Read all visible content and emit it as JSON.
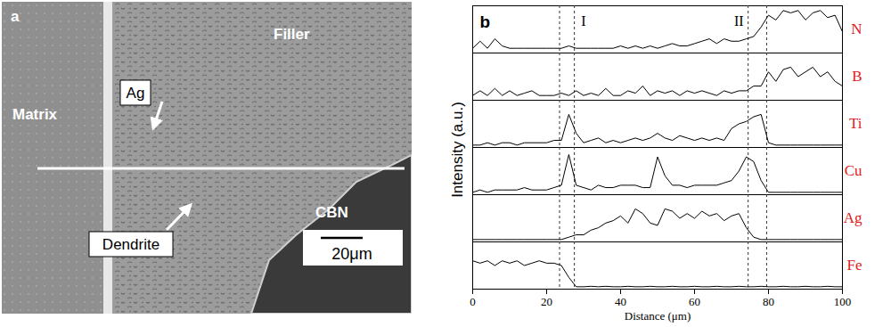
{
  "figure": {
    "panel_a": {
      "letter": "a",
      "type": "micrograph",
      "region_labels": [
        "Matrix",
        "Filler",
        "CBN"
      ],
      "arrow_labels": [
        "Ag",
        "Dendrite"
      ],
      "scale_bar": "20μm"
    }
  },
  "chart_data": {
    "type": "line",
    "letter": "b",
    "xlabel": "Distance (μm)",
    "ylabel": "Intensity (a.u.)",
    "xlim": [
      0,
      100
    ],
    "xticks": [
      0,
      20,
      40,
      60,
      80,
      100
    ],
    "ylim": [
      0,
      10
    ],
    "tick_labels": "x",
    "grid": false,
    "reference_lines": [
      23.5,
      27.5,
      74.5,
      79.5
    ],
    "annotations": [
      {
        "text": "I",
        "x": 30
      },
      {
        "text": "II",
        "x": 72
      }
    ],
    "x": [
      0,
      2,
      4,
      6,
      8,
      10,
      12,
      14,
      16,
      18,
      20,
      22,
      24,
      26,
      28,
      30,
      32,
      34,
      36,
      38,
      40,
      42,
      44,
      46,
      48,
      50,
      52,
      54,
      56,
      58,
      60,
      62,
      64,
      66,
      68,
      70,
      72,
      74,
      76,
      78,
      80,
      82,
      84,
      86,
      88,
      90,
      92,
      94,
      96,
      98,
      100
    ],
    "series": [
      {
        "name": "N",
        "color": "#000000",
        "values": [
          1,
          2.5,
          1,
          3,
          1.5,
          1,
          1,
          1,
          1,
          1,
          1,
          1,
          1,
          1.5,
          1,
          1,
          1,
          1,
          1,
          1,
          1.5,
          1,
          1.5,
          1,
          1.5,
          1,
          1.5,
          2,
          1.5,
          1.5,
          2,
          2.5,
          3,
          2,
          3,
          2.5,
          2.5,
          3,
          3.5,
          5.5,
          8,
          7,
          9,
          8.5,
          9,
          7,
          8.5,
          9,
          7.5,
          8,
          4.5
        ]
      },
      {
        "name": "B",
        "color": "#000000",
        "values": [
          1,
          2,
          1,
          2.5,
          1,
          2,
          1,
          1.5,
          2,
          1,
          1,
          1,
          1.5,
          1,
          2,
          1,
          1.5,
          1,
          2.5,
          1,
          1,
          2,
          1.5,
          3,
          1,
          2,
          1.5,
          2,
          1,
          2,
          1.5,
          2,
          1.5,
          1,
          2,
          1.5,
          2,
          2,
          3,
          3,
          6,
          4,
          6.5,
          7,
          5,
          6,
          7,
          5,
          6,
          4,
          3
        ]
      },
      {
        "name": "Ti",
        "color": "#000000",
        "values": [
          0.5,
          0.5,
          1,
          0.5,
          1,
          1,
          0.5,
          1,
          1,
          1,
          1,
          1.5,
          1.5,
          7,
          3,
          1,
          1.5,
          2,
          1,
          1.5,
          1,
          1.5,
          2,
          1.5,
          2,
          3,
          2,
          1.5,
          2.5,
          2,
          1.5,
          2,
          1.5,
          2,
          1.5,
          4,
          5,
          5.5,
          6.5,
          7,
          1,
          0.5,
          0.5,
          0.5,
          0.5,
          0.5,
          0.5,
          0.5,
          0.5,
          0.5,
          0.5
        ]
      },
      {
        "name": "Cu",
        "color": "#000000",
        "values": [
          0.5,
          1,
          0.5,
          1,
          1,
          1,
          1,
          1.5,
          1,
          1,
          1,
          1.5,
          2,
          8.5,
          2,
          1.5,
          1,
          2,
          1.5,
          1.5,
          2,
          2,
          2,
          1.5,
          1.5,
          8,
          4,
          2,
          2,
          1.5,
          2,
          2,
          2,
          2,
          2.5,
          3,
          5,
          8,
          7,
          3,
          0.5,
          0.5,
          0.5,
          0.5,
          0.5,
          0.5,
          0.5,
          0.5,
          0.5,
          0.5,
          0.5
        ]
      },
      {
        "name": "Ag",
        "color": "#000000",
        "values": [
          0.5,
          0.5,
          0.5,
          0.5,
          0.5,
          0.5,
          0.5,
          0.5,
          0.5,
          0.5,
          0.5,
          0.5,
          0.5,
          1,
          1.5,
          1.5,
          2.5,
          3,
          4,
          4.5,
          5.5,
          4,
          7,
          6,
          4,
          3.5,
          7,
          6.5,
          5,
          6,
          5,
          6.5,
          5.5,
          6,
          4.5,
          5.5,
          6,
          3,
          1,
          0.5,
          0.5,
          0.5,
          0.5,
          0.5,
          0.5,
          0.5,
          0.5,
          0.5,
          0.5,
          0.5,
          0.5
        ]
      },
      {
        "name": "Fe",
        "color": "#000000",
        "values": [
          6,
          5.5,
          6,
          5,
          6,
          5.5,
          6,
          5,
          5.5,
          6,
          5.5,
          5.5,
          5,
          2.5,
          0.5,
          0.5,
          0.6,
          0.5,
          0.6,
          0.5,
          0.5,
          0.6,
          0.5,
          0.5,
          0.6,
          0.5,
          0.5,
          0.6,
          0.5,
          0.5,
          0.6,
          0.5,
          0.5,
          0.6,
          0.5,
          0.5,
          0.6,
          0.5,
          0.5,
          0.6,
          0.5,
          0.5,
          0.6,
          0.5,
          0.5,
          0.6,
          0.5,
          0.5,
          0.6,
          0.5,
          0.5
        ]
      }
    ]
  }
}
